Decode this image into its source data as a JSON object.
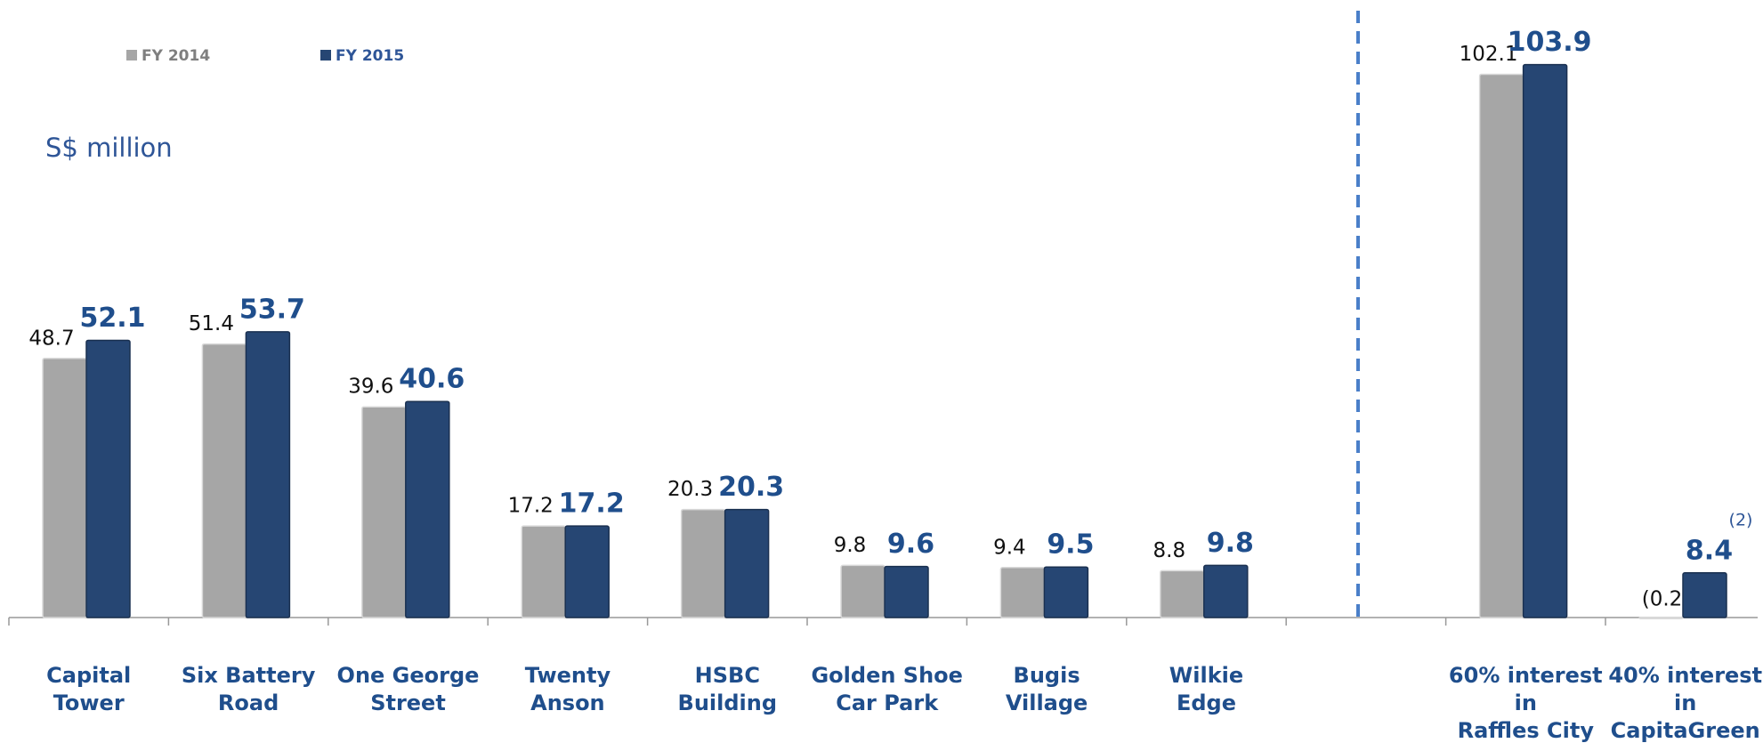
{
  "chart_data": {
    "type": "bar",
    "unit_label": "S$ million",
    "categories": [
      "Capital\nTower",
      "Six Battery\nRoad",
      "One George\nStreet",
      "Twenty\nAnson",
      "HSBC\nBuilding",
      "Golden Shoe\nCar Park",
      "Bugis\nVillage",
      "Wilkie\nEdge",
      null,
      "60% interest\nin\nRaffles City",
      "40% interest\nin\nCapitaGreen"
    ],
    "series": [
      {
        "name": "FY 2014",
        "color": "#a6a6a6",
        "values": [
          48.7,
          51.4,
          39.6,
          17.2,
          20.3,
          9.8,
          9.4,
          8.8,
          null,
          102.1,
          -0.2
        ],
        "value_labels": [
          "48.7",
          "51.4",
          "39.6",
          "17.2",
          "20.3",
          "9.8",
          "9.4",
          "8.8",
          null,
          "102.1",
          "(0.2)"
        ]
      },
      {
        "name": "FY 2015",
        "color": "#264673",
        "values": [
          52.1,
          53.7,
          40.6,
          17.2,
          20.3,
          9.6,
          9.5,
          9.8,
          null,
          103.9,
          8.4
        ]
      }
    ],
    "annotations": [
      "(2)"
    ]
  }
}
